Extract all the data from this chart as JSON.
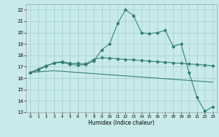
{
  "xlabel": "Humidex (Indice chaleur)",
  "background_color": "#c8eaea",
  "grid_color": "#aad4d4",
  "line_color": "#2e7d6e",
  "xlim": [
    -0.5,
    23.5
  ],
  "ylim": [
    13,
    22.5
  ],
  "yticks": [
    13,
    14,
    15,
    16,
    17,
    18,
    19,
    20,
    21,
    22
  ],
  "xticks": [
    0,
    1,
    2,
    3,
    4,
    5,
    6,
    7,
    8,
    9,
    10,
    11,
    12,
    13,
    14,
    15,
    16,
    17,
    18,
    19,
    20,
    21,
    22,
    23
  ],
  "series1_x": [
    0,
    1,
    2,
    3,
    4,
    5,
    6,
    7,
    8,
    9,
    10,
    11,
    12,
    13,
    14,
    15,
    16,
    17,
    18,
    19,
    20,
    21,
    22,
    23
  ],
  "series1_y": [
    16.5,
    16.8,
    17.1,
    17.3,
    17.4,
    17.2,
    17.15,
    17.2,
    17.5,
    18.5,
    19.0,
    20.8,
    22.0,
    21.5,
    20.0,
    19.9,
    20.0,
    20.2,
    18.8,
    19.0,
    16.5,
    14.3,
    13.1,
    13.5
  ],
  "series2_x": [
    0,
    1,
    2,
    3,
    4,
    5,
    6,
    7,
    8,
    9,
    10,
    11,
    12,
    13,
    14,
    15,
    16,
    17,
    18,
    19,
    20,
    21,
    22,
    23
  ],
  "series2_y": [
    16.5,
    16.55,
    16.6,
    16.65,
    16.6,
    16.55,
    16.5,
    16.45,
    16.4,
    16.35,
    16.3,
    16.25,
    16.2,
    16.15,
    16.1,
    16.05,
    16.0,
    15.95,
    15.9,
    15.85,
    15.8,
    15.75,
    15.7,
    15.65
  ],
  "series3_x": [
    0,
    1,
    2,
    3,
    4,
    5,
    6,
    7,
    8,
    9,
    10,
    11,
    12,
    13,
    14,
    15,
    16,
    17,
    18,
    19,
    20,
    21,
    22,
    23
  ],
  "series3_y": [
    16.5,
    16.7,
    17.05,
    17.35,
    17.45,
    17.3,
    17.3,
    17.25,
    17.65,
    17.8,
    17.75,
    17.7,
    17.65,
    17.6,
    17.55,
    17.5,
    17.45,
    17.4,
    17.35,
    17.3,
    17.25,
    17.2,
    17.15,
    17.1
  ]
}
